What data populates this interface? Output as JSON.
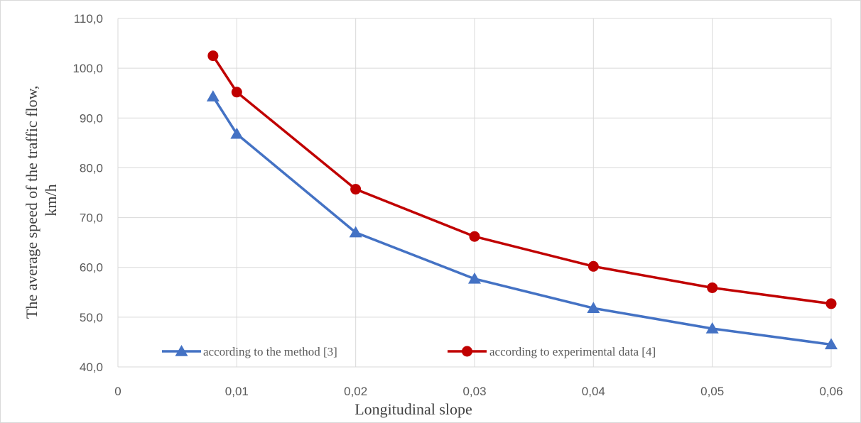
{
  "chart_data": {
    "type": "line",
    "title": "",
    "xlabel": "Longitudinal slope",
    "ylabel_line1": "The average speed of the traffic flow,",
    "ylabel_line2": "km/h",
    "categories": [
      "0",
      "0,01",
      "0,02",
      "0,03",
      "0,04",
      "0,05",
      "0,06"
    ],
    "xlim": [
      0,
      0.06
    ],
    "ylim": [
      40,
      110
    ],
    "yticks": [
      "40,0",
      "50,0",
      "60,0",
      "70,0",
      "80,0",
      "90,0",
      "100,0",
      "110,0"
    ],
    "grid": true,
    "legend_position": "bottom",
    "series": [
      {
        "name": "according to the method [3]",
        "color": "#4472c4",
        "marker": "triangle",
        "x": [
          0.008,
          0.01,
          0.02,
          0.03,
          0.04,
          0.05,
          0.06
        ],
        "y": [
          94.3,
          86.8,
          67.0,
          57.7,
          51.8,
          47.7,
          44.5
        ]
      },
      {
        "name": "according to experimental data [4]",
        "color": "#c00000",
        "marker": "circle",
        "x": [
          0.008,
          0.01,
          0.02,
          0.03,
          0.04,
          0.05,
          0.06
        ],
        "y": [
          102.5,
          95.2,
          75.7,
          66.2,
          60.2,
          55.9,
          52.7
        ]
      }
    ]
  }
}
